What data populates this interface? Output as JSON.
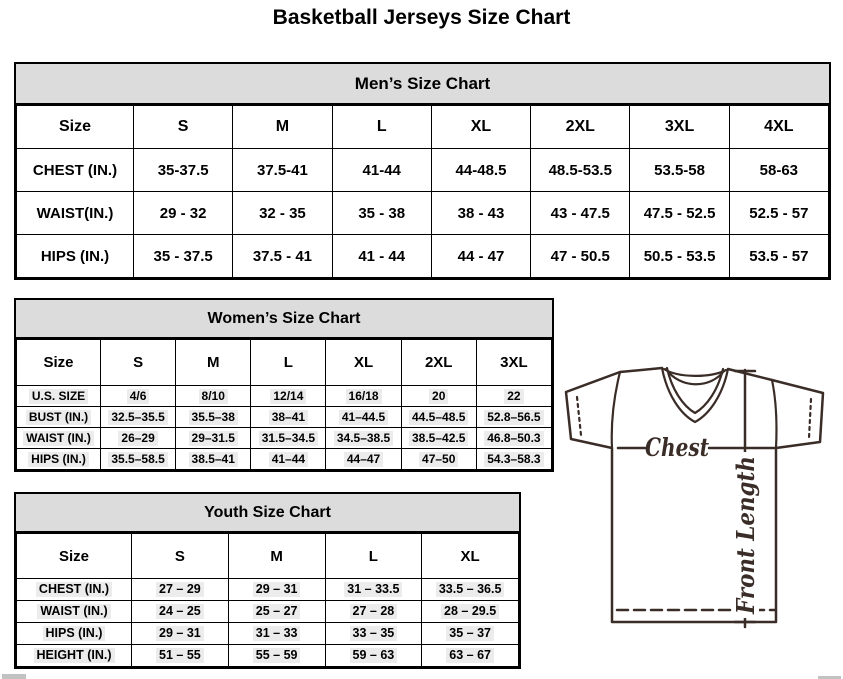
{
  "page_title": "Basketball Jerseys Size Chart",
  "mens_chart": {
    "title": "Men’s Size Chart",
    "columns": [
      "Size",
      "S",
      "M",
      "L",
      "XL",
      "2XL",
      "3XL",
      "4XL"
    ],
    "rows": [
      {
        "label": "CHEST (IN.)",
        "values": [
          "35-37.5",
          "37.5-41",
          "41-44",
          "44-48.5",
          "48.5-53.5",
          "53.5-58",
          "58-63"
        ]
      },
      {
        "label": "WAIST(IN.)",
        "values": [
          "29 - 32",
          "32 - 35",
          "35 - 38",
          "38 - 43",
          "43 - 47.5",
          "47.5 - 52.5",
          "52.5 - 57"
        ]
      },
      {
        "label": "HIPS (IN.)",
        "values": [
          "35 - 37.5",
          "37.5 - 41",
          "41 - 44",
          "44 - 47",
          "47 - 50.5",
          "50.5 - 53.5",
          "53.5 - 57"
        ]
      }
    ]
  },
  "womens_chart": {
    "title": "Women’s Size Chart",
    "columns": [
      "Size",
      "S",
      "M",
      "L",
      "XL",
      "2XL",
      "3XL"
    ],
    "rows": [
      {
        "label": "U.S. SIZE",
        "values": [
          "4/6",
          "8/10",
          "12/14",
          "16/18",
          "20",
          "22"
        ]
      },
      {
        "label": "BUST (IN.)",
        "values": [
          "32.5–35.5",
          "35.5–38",
          "38–41",
          "41–44.5",
          "44.5–48.5",
          "52.8–56.5"
        ]
      },
      {
        "label": "WAIST (IN.)",
        "values": [
          "26–29",
          "29–31.5",
          "31.5–34.5",
          "34.5–38.5",
          "38.5–42.5",
          "46.8–50.3"
        ]
      },
      {
        "label": "HIPS (IN.)",
        "values": [
          "35.5–58.5",
          "38.5–41",
          "41–44",
          "44–47",
          "47–50",
          "54.3–58.3"
        ]
      }
    ]
  },
  "youth_chart": {
    "title": "Youth Size Chart",
    "columns": [
      "Size",
      "S",
      "M",
      "L",
      "XL"
    ],
    "rows": [
      {
        "label": "CHEST (IN.)",
        "values": [
          "27 – 29",
          "29 – 31",
          "31 – 33.5",
          "33.5 – 36.5"
        ]
      },
      {
        "label": "WAIST (IN.)",
        "values": [
          "24 – 25",
          "25 – 27",
          "27 – 28",
          "28 – 29.5"
        ]
      },
      {
        "label": "HIPS (IN.)",
        "values": [
          "29 – 31",
          "31 – 33",
          "33 – 35",
          "35 – 37"
        ]
      },
      {
        "label": "HEIGHT (IN.)",
        "values": [
          "51 – 55",
          "55 – 59",
          "59 – 63",
          "63 – 67"
        ]
      }
    ]
  },
  "diagram": {
    "chest_label": "Chest",
    "front_length_label": "Front Length",
    "line_color": "#3a2d27"
  },
  "colors": {
    "header_bg": "#dcdcdc",
    "value_highlight": "#ececec",
    "border": "#000000",
    "scrollbar_fragment": "#c2c2c2"
  }
}
